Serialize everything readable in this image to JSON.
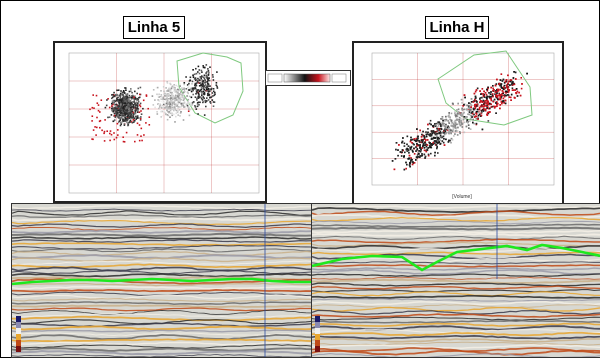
{
  "panels": {
    "left": {
      "title": "Linha 5"
    },
    "right": {
      "title": "Linha H",
      "xlabel": "[Volume]"
    }
  },
  "colors": {
    "red": "#c8141e",
    "black": "#111111",
    "white": "#f2f2f2",
    "polygon": "#7fc97f",
    "horizon": "#1ee81e",
    "grid": "#b00000"
  },
  "icons": [
    "color-scale-icon"
  ]
}
